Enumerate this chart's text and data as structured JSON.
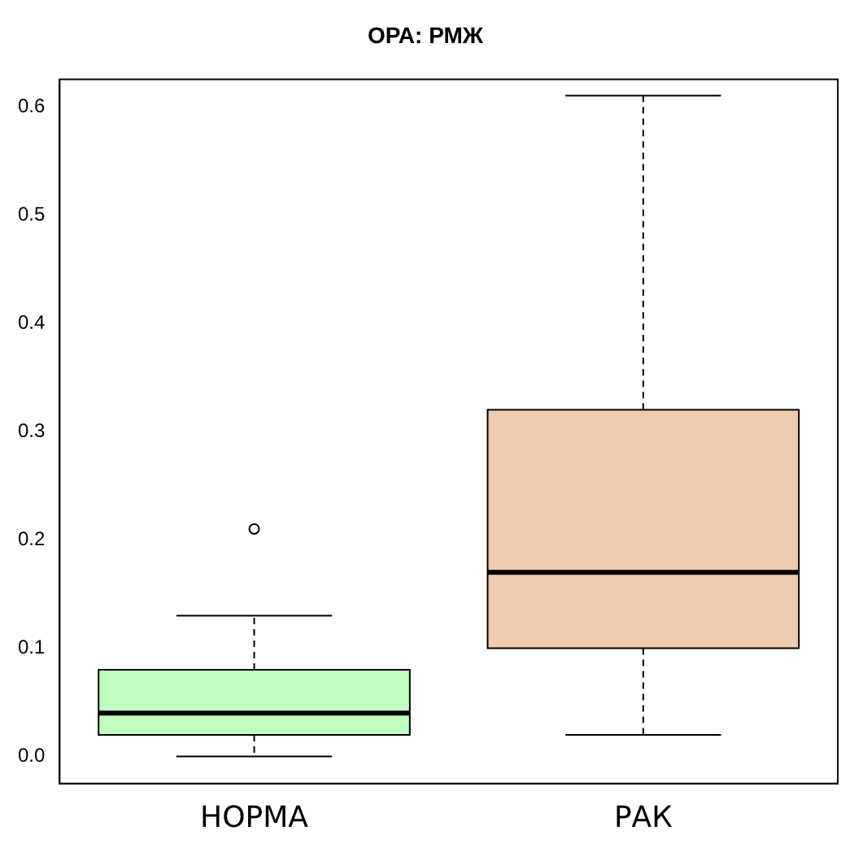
{
  "chart_data": {
    "type": "box",
    "title": "ОРА: РМЖ",
    "categories": [
      "НОРМА",
      "РАК"
    ],
    "colors": [
      "#c0ffc0",
      "#eecbad"
    ],
    "boxes": [
      {
        "low": 0.0,
        "q1": 0.02,
        "median": 0.04,
        "q3": 0.08,
        "high": 0.13,
        "outliers": [
          0.21
        ]
      },
      {
        "low": 0.02,
        "q1": 0.1,
        "median": 0.17,
        "q3": 0.32,
        "high": 0.61
      }
    ],
    "ylim": [
      -0.025,
      0.625
    ],
    "yticks": [
      {
        "value": 0,
        "label": "0.0"
      },
      0.1,
      0.2,
      0.3,
      0.4,
      0.5,
      0.6
    ],
    "grid": false,
    "legend": false
  }
}
